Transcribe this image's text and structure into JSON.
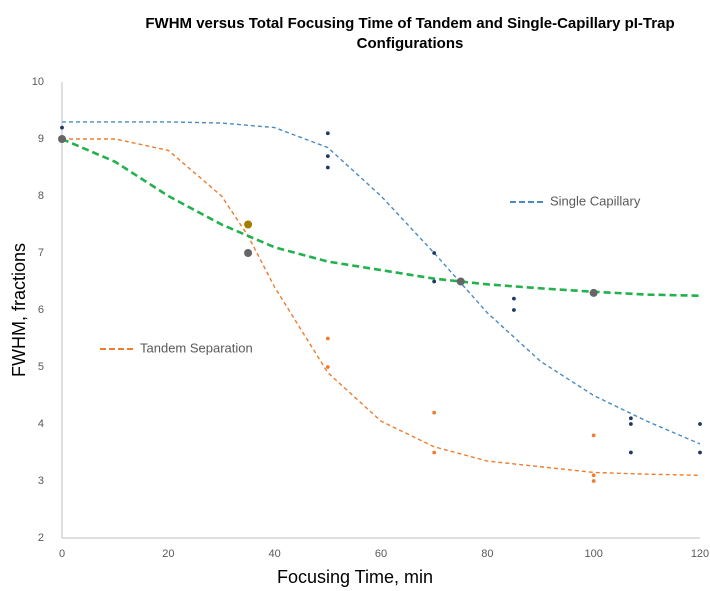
{
  "chart_data": {
    "type": "scatter",
    "title": "FWHM versus Total Focusing Time of Tandem and Single-Capillary pI-Trap Configurations",
    "x_label": "Focusing Time, min",
    "y_label": "FWHM, fractions",
    "xlim": [
      0,
      120
    ],
    "xticks": [
      0,
      20,
      40,
      60,
      80,
      100,
      120
    ],
    "ylim": [
      2,
      10
    ],
    "yticks": [
      2,
      3,
      4,
      5,
      6,
      7,
      8,
      9,
      10
    ],
    "grid": false,
    "series": [
      {
        "name": "Single Capillary",
        "color": "#4a8bc4",
        "style": "dashed",
        "x": [
          0,
          10,
          20,
          30,
          40,
          50,
          60,
          70,
          80,
          90,
          100,
          110,
          120
        ],
        "values": [
          9.3,
          9.3,
          9.3,
          9.28,
          9.2,
          8.85,
          8.0,
          7.0,
          5.95,
          5.1,
          4.5,
          4.05,
          3.65
        ]
      },
      {
        "name": "Tandem Separation",
        "color": "#ed7d31",
        "style": "dashed",
        "x": [
          0,
          10,
          20,
          30,
          35,
          40,
          50,
          60,
          70,
          80,
          90,
          100,
          110,
          120
        ],
        "values": [
          9.0,
          9.0,
          8.8,
          8.0,
          7.3,
          6.4,
          4.9,
          4.05,
          3.6,
          3.35,
          3.25,
          3.15,
          3.12,
          3.1
        ]
      },
      {
        "color": "#22b14c",
        "style": "thick-dashed",
        "x": [
          0,
          10,
          20,
          30,
          40,
          50,
          60,
          70,
          80,
          90,
          100,
          110,
          120
        ],
        "values": [
          9.0,
          8.6,
          8.0,
          7.5,
          7.1,
          6.85,
          6.7,
          6.55,
          6.45,
          6.38,
          6.32,
          6.27,
          6.25
        ]
      },
      {
        "color": "#1f3864",
        "style": "dots",
        "x": [
          0,
          50,
          50,
          50,
          70,
          70,
          85,
          85,
          107,
          107,
          107,
          120,
          120
        ],
        "values": [
          9.2,
          9.1,
          8.7,
          8.5,
          7.0,
          6.5,
          6.2,
          6.0,
          4.1,
          4.0,
          3.5,
          4.0,
          3.5
        ]
      },
      {
        "color": "#ed7d31",
        "style": "dots",
        "x": [
          50,
          50,
          70,
          70,
          100,
          100,
          100
        ],
        "values": [
          5.5,
          5.0,
          4.2,
          3.5,
          3.8,
          3.1,
          3.0
        ]
      },
      {
        "color": "#666666",
        "style": "markers",
        "x": [
          0,
          35,
          75,
          100
        ],
        "values": [
          9.0,
          7.0,
          6.5,
          6.3
        ]
      },
      {
        "color": "#a67c00",
        "style": "markers",
        "x": [
          35
        ],
        "values": [
          7.5
        ]
      }
    ]
  }
}
